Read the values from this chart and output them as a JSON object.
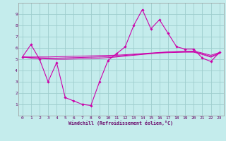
{
  "xlabel": "Windchill (Refroidissement éolien,°C)",
  "background_color": "#c4ecec",
  "grid_color": "#9ecece",
  "line_color": "#cc00aa",
  "x_hours": [
    0,
    1,
    2,
    3,
    4,
    5,
    6,
    7,
    8,
    9,
    10,
    11,
    12,
    13,
    14,
    15,
    16,
    17,
    18,
    19,
    20,
    21,
    22,
    23
  ],
  "y_main": [
    5.2,
    6.3,
    5.0,
    3.0,
    4.7,
    1.6,
    1.3,
    1.0,
    0.9,
    3.0,
    4.9,
    5.5,
    6.1,
    8.0,
    9.4,
    7.7,
    8.5,
    7.3,
    6.1,
    5.9,
    5.9,
    5.1,
    4.8,
    5.6
  ],
  "y_smooth1": [
    5.2,
    5.2,
    5.2,
    5.2,
    5.22,
    5.24,
    5.26,
    5.28,
    5.3,
    5.32,
    5.34,
    5.36,
    5.4,
    5.45,
    5.5,
    5.55,
    5.6,
    5.65,
    5.68,
    5.7,
    5.72,
    5.55,
    5.35,
    5.6
  ],
  "y_smooth2": [
    5.2,
    5.15,
    5.12,
    5.1,
    5.1,
    5.12,
    5.14,
    5.16,
    5.18,
    5.2,
    5.23,
    5.28,
    5.34,
    5.4,
    5.46,
    5.52,
    5.58,
    5.62,
    5.65,
    5.67,
    5.67,
    5.48,
    5.25,
    5.55
  ],
  "y_smooth3": [
    5.2,
    5.1,
    5.05,
    5.02,
    5.0,
    5.0,
    5.02,
    5.04,
    5.06,
    5.1,
    5.14,
    5.2,
    5.28,
    5.35,
    5.42,
    5.49,
    5.55,
    5.58,
    5.6,
    5.62,
    5.62,
    5.42,
    5.18,
    5.5
  ],
  "ylim": [
    0,
    10
  ],
  "xlim": [
    -0.5,
    23.5
  ],
  "yticks": [
    1,
    2,
    3,
    4,
    5,
    6,
    7,
    8,
    9
  ],
  "xticks": [
    0,
    1,
    2,
    3,
    4,
    5,
    6,
    7,
    8,
    9,
    10,
    11,
    12,
    13,
    14,
    15,
    16,
    17,
    18,
    19,
    20,
    21,
    22,
    23
  ]
}
